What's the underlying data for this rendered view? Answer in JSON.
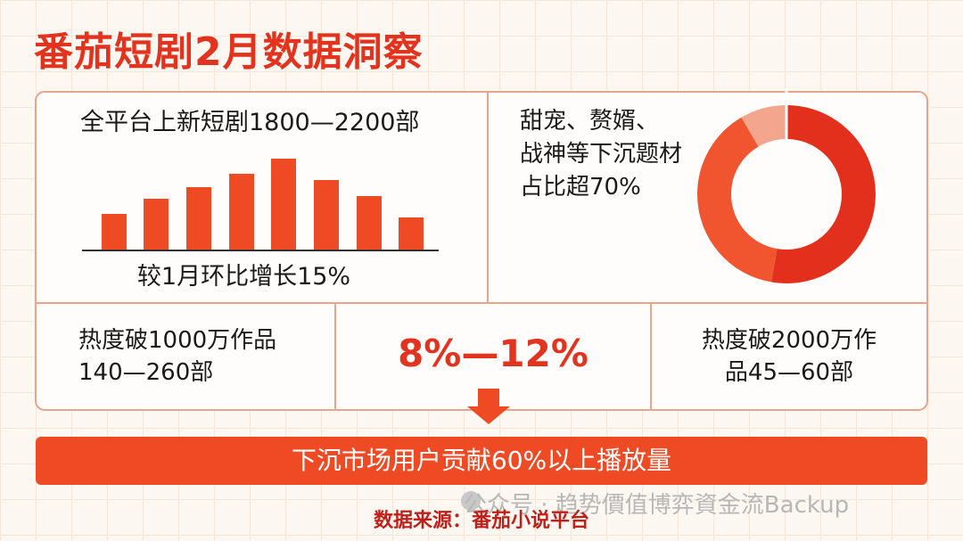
{
  "title": "番茄短剧2月数据洞察",
  "panels": {
    "new_releases": {
      "headline": "全平台上新短剧1800—2200部",
      "caption": "较1月环比增长15%"
    },
    "genres": {
      "lines": [
        "甜宠、赘婿、",
        "战神等下沉题材",
        "占比超70%"
      ]
    },
    "hot_1000": {
      "lines": [
        "热度破1000万作品",
        "140—260部"
      ]
    },
    "range": "8%—12%",
    "hot_2000": {
      "lines": [
        "热度破2000万作",
        "品45—60部"
      ]
    }
  },
  "banner": "下沉市场用户贡献60%以上播放量",
  "watermark": "公众号 · 趋势價值博弈資金流Backup",
  "source": "数据来源：番茄小说平台"
}
